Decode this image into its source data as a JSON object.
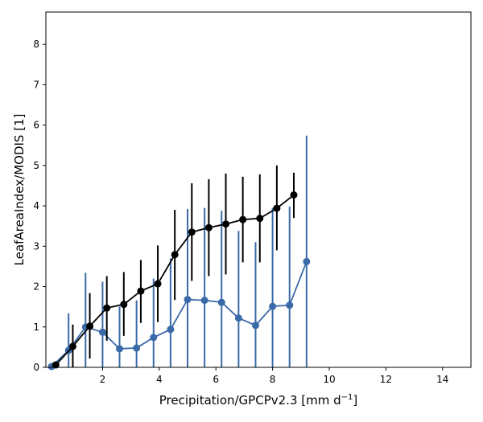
{
  "chart_data": {
    "type": "line",
    "xlabel": "Precipitation/GPCPv2.3 [mm d",
    "xlabel_sup": "−1",
    "xlabel_end": "]",
    "ylabel": "LeafAreaIndex/MODIS [1]",
    "xlim": [
      0,
      15
    ],
    "ylim": [
      0,
      8.8
    ],
    "xticks": [
      2,
      4,
      6,
      8,
      10,
      12,
      14
    ],
    "xtick_labels": [
      "2",
      "4",
      "6",
      "8",
      "10",
      "12",
      "14"
    ],
    "yticks": [
      0,
      1,
      2,
      3,
      4,
      5,
      6,
      7,
      8
    ],
    "ytick_labels": [
      "0",
      "1",
      "2",
      "3",
      "4",
      "5",
      "6",
      "7",
      "8"
    ],
    "grid": false,
    "legend": "none",
    "series": [
      {
        "color": "#3a6aa8",
        "marker": "circle",
        "error_bars": true,
        "x": [
          0.2,
          0.8,
          1.4,
          2.0,
          2.6,
          3.2,
          3.8,
          4.4,
          5.0,
          5.6,
          6.2,
          6.8,
          7.4,
          8.0,
          8.6,
          9.2
        ],
        "values": [
          0.02,
          0.42,
          1.0,
          0.87,
          0.46,
          0.48,
          0.74,
          0.94,
          1.68,
          1.66,
          1.61,
          1.22,
          1.04,
          1.51,
          1.54,
          2.62
        ],
        "lower": [
          0.0,
          0.0,
          0.0,
          0.0,
          0.0,
          0.0,
          0.0,
          0.0,
          0.0,
          0.0,
          0.0,
          0.0,
          0.0,
          0.0,
          0.0,
          0.0
        ],
        "upper": [
          0.08,
          1.34,
          2.34,
          2.12,
          1.5,
          1.66,
          2.2,
          2.7,
          3.92,
          3.95,
          3.88,
          3.38,
          3.1,
          3.95,
          3.98,
          5.74
        ]
      },
      {
        "color": "#000000",
        "marker": "circle",
        "error_bars": true,
        "x": [
          0.35,
          0.95,
          1.55,
          2.15,
          2.75,
          3.35,
          3.95,
          4.55,
          5.15,
          5.75,
          6.35,
          6.95,
          7.55,
          8.15,
          8.75
        ],
        "values": [
          0.06,
          0.52,
          1.02,
          1.47,
          1.56,
          1.89,
          2.07,
          2.79,
          3.35,
          3.46,
          3.55,
          3.66,
          3.69,
          3.94,
          4.27
        ],
        "lower": [
          0.0,
          0.0,
          0.22,
          0.66,
          0.78,
          1.1,
          1.12,
          1.67,
          2.14,
          2.26,
          2.3,
          2.6,
          2.6,
          2.9,
          3.7
        ],
        "upper": [
          0.12,
          1.06,
          1.84,
          2.26,
          2.36,
          2.66,
          3.02,
          3.9,
          4.56,
          4.66,
          4.8,
          4.72,
          4.78,
          5.0,
          4.82
        ]
      }
    ]
  }
}
